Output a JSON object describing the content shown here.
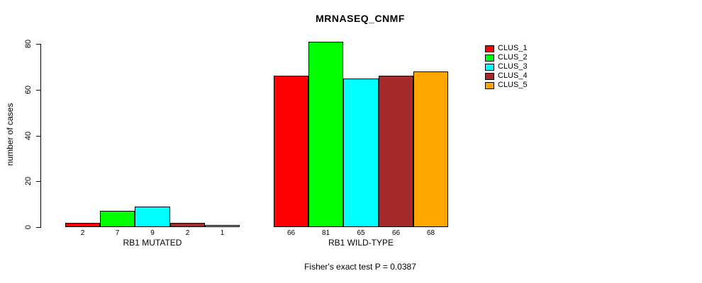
{
  "chart_data": {
    "type": "bar",
    "title": "MRNASEQ_CNMF",
    "ylabel": "number of cases",
    "xlabel": "",
    "groups": [
      "RB1 MUTATED",
      "RB1 WILD-TYPE"
    ],
    "series": [
      {
        "name": "CLUS_1",
        "color": "#FF0000",
        "values": [
          2,
          66
        ]
      },
      {
        "name": "CLUS_2",
        "color": "#00FF00",
        "values": [
          7,
          81
        ]
      },
      {
        "name": "CLUS_3",
        "color": "#00FFFF",
        "values": [
          9,
          65
        ]
      },
      {
        "name": "CLUS_4",
        "color": "#A52A2A",
        "values": [
          2,
          66
        ]
      },
      {
        "name": "CLUS_5",
        "color": "#FFA500",
        "values": [
          1,
          68
        ]
      }
    ],
    "yticks": [
      0,
      20,
      40,
      60,
      80
    ],
    "ylim": [
      0,
      80
    ],
    "bar_value_labels_shown": true,
    "grid": false,
    "legend_position": "right",
    "annotation": "Fisher's exact test P = 0.0387"
  },
  "colors": {
    "background": "#FFFFFF",
    "axis": "#000000",
    "bar_border": "#000000",
    "text": "#000000"
  }
}
